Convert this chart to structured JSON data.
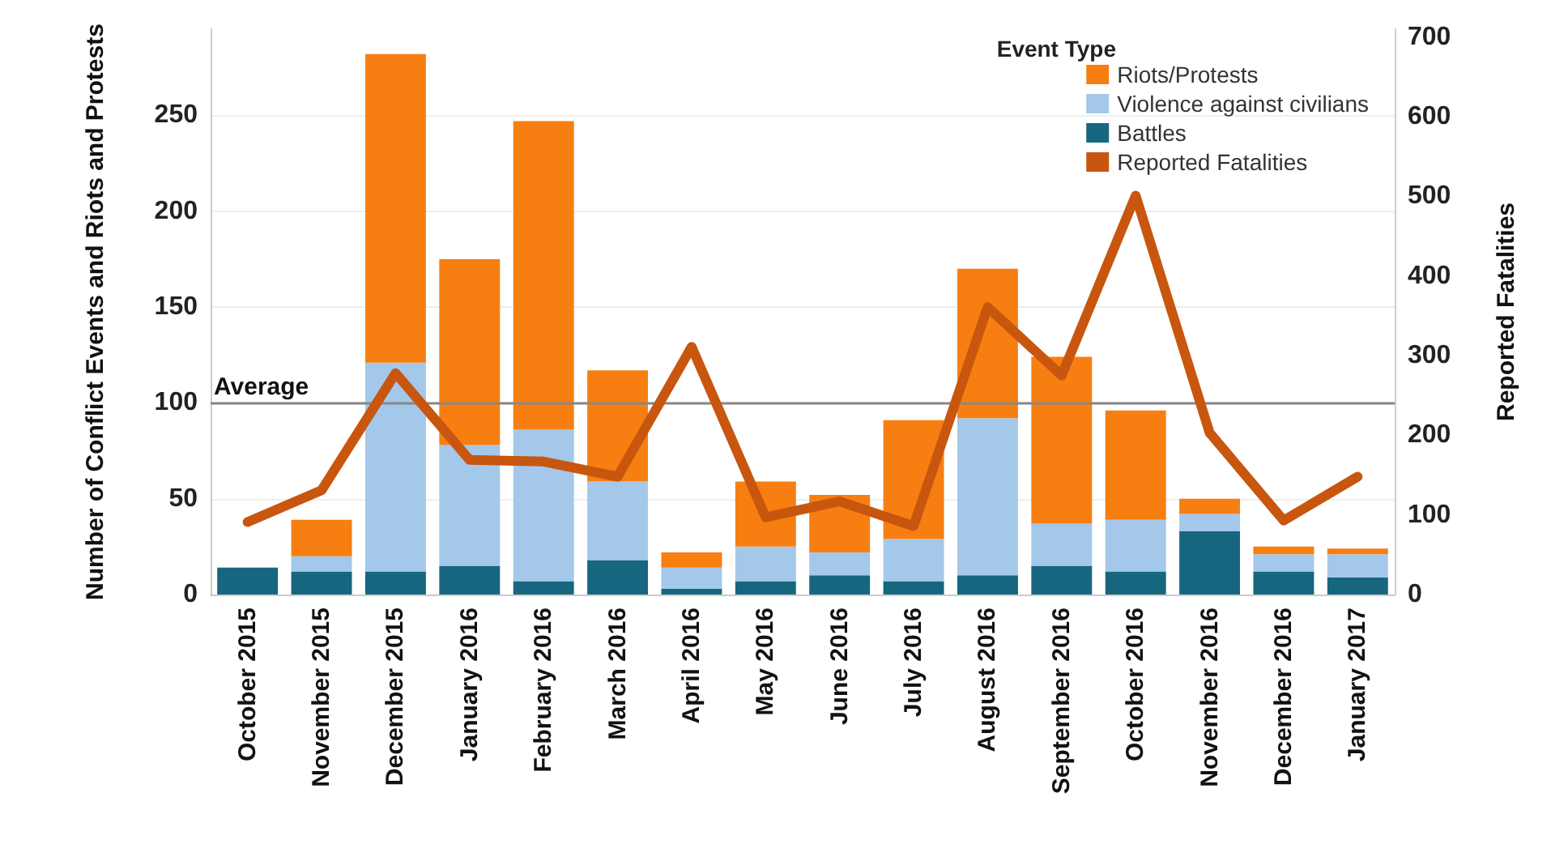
{
  "chart_data": {
    "type": "bar",
    "stacked": true,
    "ylabel": "Number of Conflict Events and Riots and Protests",
    "y2label": "Reported Fatalities",
    "legend_title": "Event Type",
    "legend": "top right",
    "grid": "y",
    "categories": [
      "October 2015",
      "November 2015",
      "December 2015",
      "January 2016",
      "February 2016",
      "March 2016",
      "April 2016",
      "May 2016",
      "June 2016",
      "July 2016",
      "August 2016",
      "September 2016",
      "October 2016",
      "November 2016",
      "December 2016",
      "January 2017"
    ],
    "series": [
      {
        "name": "Battles",
        "color": "#17667f",
        "values": [
          14,
          12,
          12,
          15,
          7,
          18,
          3,
          7,
          10,
          7,
          10,
          15,
          12,
          33,
          12,
          9
        ]
      },
      {
        "name": "Violence against civilians",
        "color": "#a4c8ea",
        "values": [
          0,
          8,
          109,
          63,
          79,
          41,
          11,
          18,
          12,
          22,
          82,
          22,
          27,
          9,
          9,
          12
        ]
      },
      {
        "name": "Riots/Protests",
        "color": "#f77f11",
        "values": [
          0,
          19,
          161,
          97,
          161,
          58,
          8,
          34,
          30,
          62,
          78,
          87,
          57,
          8,
          4,
          3
        ]
      },
      {
        "name": "Reported Fatalities",
        "type": "line",
        "axis": "y2",
        "color": "#c8560e",
        "marker": "none",
        "values": [
          91,
          131,
          278,
          169,
          167,
          148,
          311,
          97,
          117,
          86,
          361,
          275,
          501,
          203,
          93,
          148
        ]
      }
    ],
    "ylim": [
      0,
      295
    ],
    "yticks": [
      0,
      50,
      100,
      150,
      200,
      250
    ],
    "y2lim": [
      0,
      710
    ],
    "y2ticks": [
      0,
      100,
      200,
      300,
      400,
      500,
      600,
      700
    ],
    "ref_lines": [
      {
        "axis": "y",
        "value": 100,
        "label": "Average",
        "color": "#888888"
      }
    ]
  }
}
